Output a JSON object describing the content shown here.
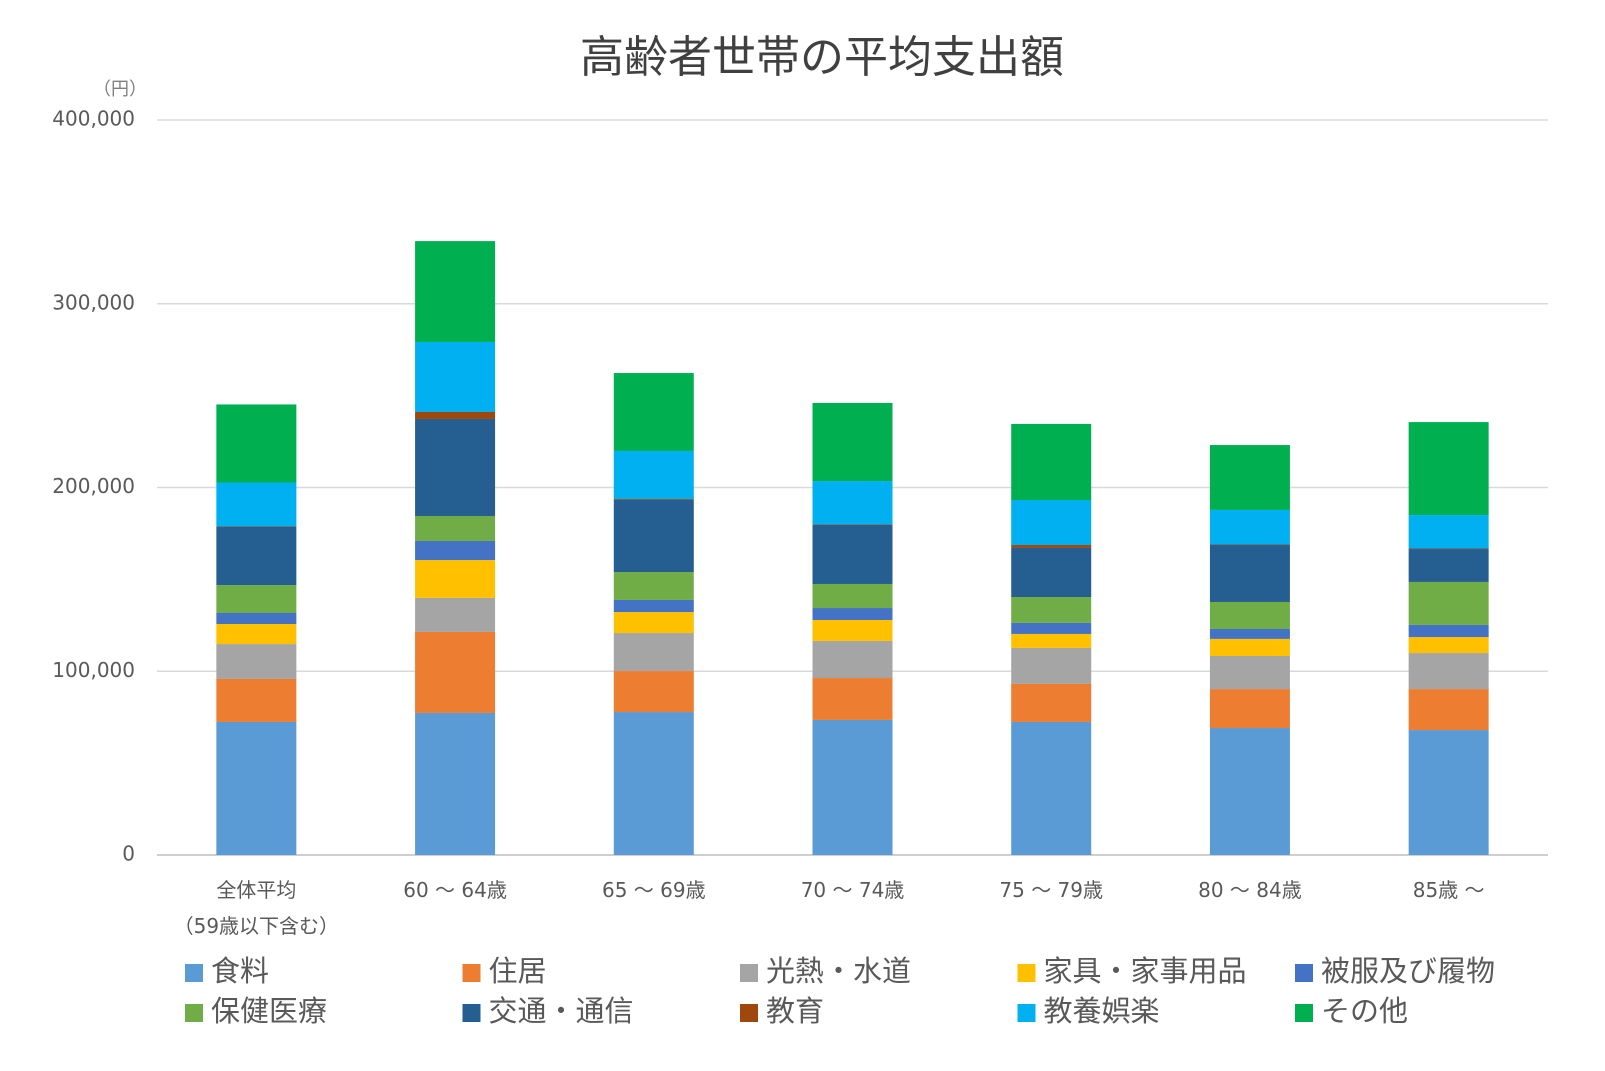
{
  "chart_data": {
    "type": "stacked_bar",
    "title": "高齢者世帯の平均支出額",
    "y_unit": "（円）",
    "categories": [
      "全体平均\n（59歳以下含む）",
      "60 ～ 64歳",
      "65 ～ 69歳",
      "70 ～ 74歳",
      "75 ～ 79歳",
      "80 ～ 84歳",
      "85歳 ～"
    ],
    "ylim": [
      0,
      400000
    ],
    "yticks": [
      {
        "value": 0,
        "label": "0"
      },
      {
        "value": 100000,
        "label": "100,000"
      },
      {
        "value": 200000,
        "label": "200,000"
      },
      {
        "value": 300000,
        "label": "300,000"
      },
      {
        "value": 400000,
        "label": "400,000"
      }
    ],
    "grid": true,
    "series": [
      {
        "name": "食料",
        "color": "#5b9bd5",
        "values": [
          72400,
          77300,
          77800,
          73500,
          72400,
          69100,
          68000
        ]
      },
      {
        "name": "住居",
        "color": "#ed7d31",
        "values": [
          23400,
          44100,
          22300,
          22800,
          20700,
          21200,
          22300
        ]
      },
      {
        "name": "光熱・水道",
        "color": "#a5a5a5",
        "values": [
          19000,
          18500,
          20700,
          20200,
          19600,
          18000,
          19600
        ]
      },
      {
        "name": "家具・家事用品",
        "color": "#ffc000",
        "values": [
          10900,
          20600,
          11400,
          11400,
          7600,
          9300,
          8700
        ]
      },
      {
        "name": "被服及び履物",
        "color": "#4472c4",
        "values": [
          6000,
          10400,
          6600,
          6500,
          6000,
          5400,
          6600
        ]
      },
      {
        "name": "保健医療",
        "color": "#70ad47",
        "values": [
          15200,
          13600,
          15200,
          13100,
          14100,
          14700,
          23400
        ]
      },
      {
        "name": "交通・通信",
        "color": "#255e91",
        "values": [
          31600,
          52800,
          39200,
          32100,
          26700,
          31000,
          17900
        ]
      },
      {
        "name": "教育",
        "color": "#9e480e",
        "values": [
          300,
          3800,
          500,
          300,
          1600,
          300,
          300
        ]
      },
      {
        "name": "教養娯楽",
        "color": "#00b0f0",
        "values": [
          23900,
          38100,
          26200,
          23600,
          24500,
          18800,
          18200
        ]
      },
      {
        "name": "その他",
        "color": "#00b050",
        "values": [
          42500,
          54900,
          42400,
          42500,
          41400,
          35300,
          50600
        ]
      }
    ]
  }
}
